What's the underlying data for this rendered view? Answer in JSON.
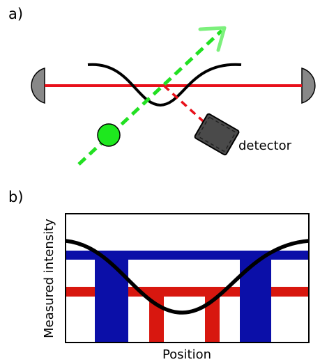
{
  "panel_a": {
    "label": "a)",
    "detector_label": "detector"
  },
  "panel_b": {
    "label": "b)",
    "xlabel": "Position",
    "ylabel": "Measured intensity"
  },
  "colors": {
    "laser": "#e8101a",
    "probe_beam": "#22e022",
    "atom": "#1ee81e",
    "mirror": "#888888",
    "detector": "#4a4a4a",
    "blue_bar": "#0b0fa8",
    "red_bar": "#d8170f",
    "curve": "#000000"
  }
}
